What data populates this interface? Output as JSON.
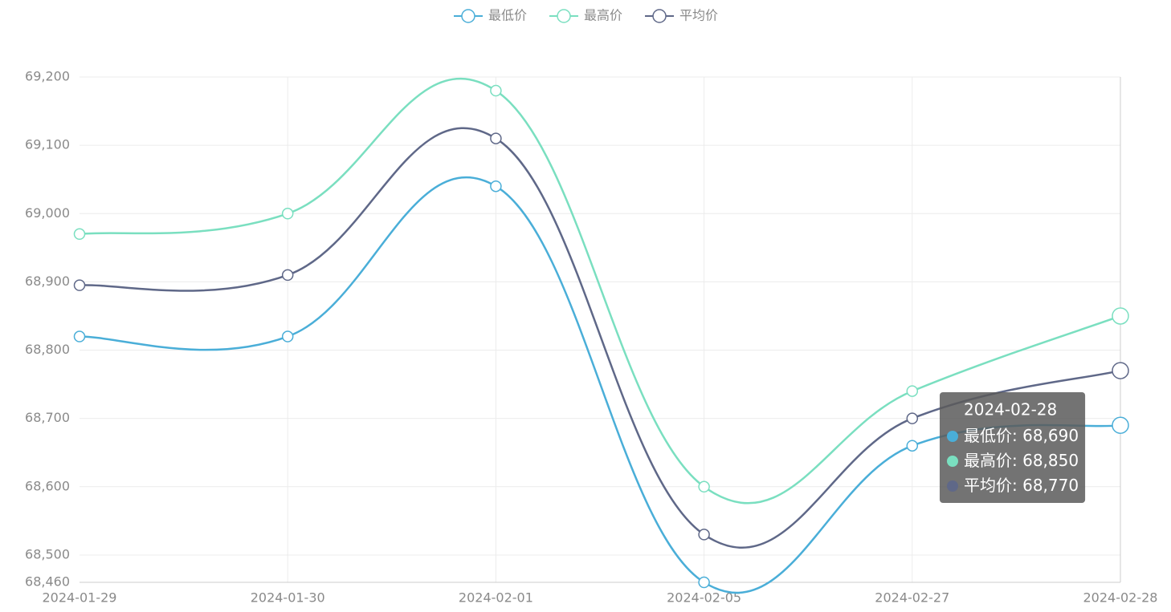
{
  "chart_data": {
    "type": "line",
    "smooth": true,
    "grid": true,
    "categories": [
      "2024-01-29",
      "2024-01-30",
      "2024-02-01",
      "2024-02-05",
      "2024-02-27",
      "2024-02-28"
    ],
    "series": [
      {
        "name": "最低价",
        "color": "#4aaed8",
        "values": [
          68820,
          68820,
          69040,
          68460,
          68660,
          68690
        ]
      },
      {
        "name": "最高价",
        "color": "#7adfc0",
        "values": [
          68970,
          69000,
          69180,
          68600,
          68740,
          68850
        ]
      },
      {
        "name": "平均价",
        "color": "#5f6888",
        "values": [
          68895,
          68910,
          69110,
          68530,
          68700,
          68770
        ]
      }
    ],
    "ylim": [
      68460,
      69200
    ],
    "yticks": [
      {
        "value": 68460,
        "label": "68,460"
      },
      {
        "value": 68500,
        "label": "68,500"
      },
      {
        "value": 68600,
        "label": "68,600"
      },
      {
        "value": 68700,
        "label": "68,700"
      },
      {
        "value": 68800,
        "label": "68,800"
      },
      {
        "value": 68900,
        "label": "68,900"
      },
      {
        "value": 69000,
        "label": "69,000"
      },
      {
        "value": 69100,
        "label": "69,100"
      },
      {
        "value": 69200,
        "label": "69,200"
      }
    ],
    "tooltip": {
      "title": "2024-02-28",
      "separator": ": ",
      "value_labels": [
        "68,690",
        "68,850",
        "68,770"
      ]
    }
  }
}
